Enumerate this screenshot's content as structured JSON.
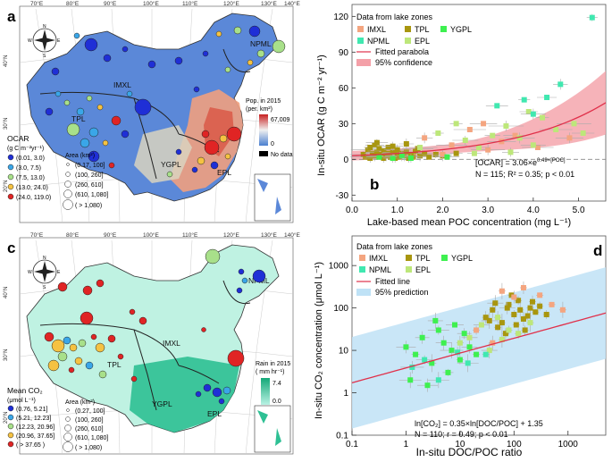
{
  "panel_a": {
    "label": "a",
    "lon_ticks": [
      "70°E",
      "80°E",
      "90°E",
      "100°E",
      "110°E",
      "120°E",
      "130°E",
      "140°E"
    ],
    "lat_ticks": [
      "40°N",
      "30°N",
      "20°N"
    ],
    "zones": [
      "NPML",
      "IMXL",
      "TPL",
      "YGPL",
      "EPL"
    ],
    "legend_title": "OCAR",
    "legend_unit": "(g C m⁻²yr⁻¹)",
    "classes": [
      {
        "label": "(0.01, 3.0)",
        "color": "#1f2fd6"
      },
      {
        "label": "(3.0, 7.5)",
        "color": "#3aa6e8"
      },
      {
        "label": "(7.5, 13.0)",
        "color": "#a8e08a"
      },
      {
        "label": "(13.0, 24.0)",
        "color": "#f5c242"
      },
      {
        "label": "(24.0, 119.0)",
        "color": "#e02424"
      }
    ],
    "area_title": "Area (km²)",
    "area_classes": [
      "(0.17, 100]",
      "(100, 260]",
      "(260, 610]",
      "(610, 1,080]",
      "( > 1,080)"
    ],
    "pop_title": "Pop. in 2015",
    "pop_unit": "(per. km²)",
    "pop_max": "67,009",
    "pop_min": "0",
    "no_data": "No data"
  },
  "panel_c": {
    "label": "c",
    "lon_ticks": [
      "70°E",
      "80°E",
      "90°E",
      "100°E",
      "110°E",
      "120°E",
      "130°E",
      "140°E"
    ],
    "lat_ticks": [
      "40°N",
      "30°N",
      "20°N"
    ],
    "zones": [
      "NPML",
      "IMXL",
      "TPL",
      "YGPL",
      "EPL"
    ],
    "legend_title": "Mean CO₂",
    "legend_unit": "(μmol L⁻¹)",
    "classes": [
      {
        "label": "(0.76, 5.21]",
        "color": "#1f2fd6"
      },
      {
        "label": "(5.21, 12.23]",
        "color": "#3aa6e8"
      },
      {
        "label": "(12.23, 20.96]",
        "color": "#a8e08a"
      },
      {
        "label": "(20.96, 37.65]",
        "color": "#f5c242"
      },
      {
        "label": "( > 37.65 )",
        "color": "#e02424"
      }
    ],
    "area_title": "Area (km²)",
    "area_classes": [
      "(0.27, 100]",
      "(100, 260]",
      "(260, 610]",
      "(610, 1,080]",
      "( > 1,080)"
    ],
    "rain_title": "Rain in 2015",
    "rain_unit": "( mm hr⁻¹)",
    "rain_max": "7.4",
    "rain_min": "0.0"
  },
  "zone_colors": {
    "IMXL": "#f4a580",
    "TPL": "#a8960f",
    "YGPL": "#3ef050",
    "NPML": "#40e8b0",
    "EPL": "#bde77a"
  },
  "chart_data": [
    {
      "id": "b",
      "type": "scatter",
      "label": "b",
      "legend_title": "Data from lake zones",
      "series_names": [
        "IMXL",
        "TPL",
        "YGPL",
        "NPML",
        "EPL"
      ],
      "fit_label": "Fitted parabola",
      "band_label": "95% confidence",
      "xlabel": "Lake-based mean POC concentration (mg L⁻¹)",
      "ylabel": "In-situ OCAR (g C m⁻² yr⁻¹)",
      "xlim": [
        0,
        5.6
      ],
      "ylim": [
        -35,
        130
      ],
      "xticks": [
        "0.0",
        "1.0",
        "2.0",
        "3.0",
        "4.0",
        "5.0"
      ],
      "yticks": [
        "-30",
        "0",
        "30",
        "60",
        "90",
        "120"
      ],
      "equation": "[OCAR] = 3.06×e^{0.49×[POC]}",
      "eq_lhs": "[OCAR] = 3.06×e",
      "eq_exp": "0.49×[POC]",
      "stats_line": "N = 115; R² = 0.35; p < 0.01",
      "fit": {
        "a": 3.06,
        "b": 0.49
      },
      "series": [
        {
          "name": "TPL",
          "points": [
            [
              0.25,
              4
            ],
            [
              0.3,
              2
            ],
            [
              0.35,
              8
            ],
            [
              0.4,
              1
            ],
            [
              0.45,
              5
            ],
            [
              0.5,
              12
            ],
            [
              0.5,
              3
            ],
            [
              0.55,
              6
            ],
            [
              0.6,
              2
            ],
            [
              0.6,
              9
            ],
            [
              0.65,
              4
            ],
            [
              0.7,
              7
            ],
            [
              0.7,
              1
            ],
            [
              0.75,
              3
            ],
            [
              0.8,
              10
            ],
            [
              0.8,
              5
            ],
            [
              0.85,
              2
            ],
            [
              0.9,
              6
            ],
            [
              0.95,
              1
            ],
            [
              1.0,
              4
            ],
            [
              1.0,
              8
            ],
            [
              1.05,
              2
            ],
            [
              1.1,
              5
            ],
            [
              1.15,
              3
            ],
            [
              1.2,
              6
            ],
            [
              1.25,
              1
            ],
            [
              1.3,
              4
            ],
            [
              1.35,
              2
            ],
            [
              1.4,
              7
            ],
            [
              1.5,
              3
            ],
            [
              1.6,
              5
            ],
            [
              1.7,
              2
            ],
            [
              1.85,
              4
            ],
            [
              2.0,
              3
            ],
            [
              2.3,
              5
            ],
            [
              0.55,
              14
            ],
            [
              0.9,
              11
            ],
            [
              1.2,
              13
            ],
            [
              0.4,
              10
            ],
            [
              1.45,
              9
            ]
          ]
        },
        {
          "name": "IMXL",
          "points": [
            [
              1.6,
              18
            ],
            [
              2.2,
              12
            ],
            [
              2.6,
              25
            ],
            [
              3.0,
              8
            ],
            [
              3.3,
              15
            ],
            [
              3.6,
              20
            ],
            [
              4.1,
              10
            ],
            [
              4.8,
              18
            ],
            [
              2.0,
              4
            ],
            [
              2.9,
              30
            ]
          ]
        },
        {
          "name": "EPL",
          "points": [
            [
              1.5,
              10
            ],
            [
              1.9,
              22
            ],
            [
              2.3,
              30
            ],
            [
              2.5,
              16
            ],
            [
              2.8,
              10
            ],
            [
              3.1,
              20
            ],
            [
              3.4,
              28
            ],
            [
              3.7,
              18
            ],
            [
              3.9,
              40
            ],
            [
              4.2,
              35
            ],
            [
              4.5,
              25
            ],
            [
              4.9,
              30
            ],
            [
              5.1,
              22
            ],
            [
              2.7,
              5
            ],
            [
              3.5,
              6
            ],
            [
              4.0,
              12
            ]
          ]
        },
        {
          "name": "YGPL",
          "points": [
            [
              0.6,
              2
            ],
            [
              0.9,
              1
            ],
            [
              1.1,
              3
            ],
            [
              1.3,
              1
            ],
            [
              2.1,
              2
            ]
          ]
        },
        {
          "name": "NPML",
          "points": [
            [
              4.3,
              52
            ],
            [
              4.6,
              63
            ],
            [
              5.3,
              119
            ],
            [
              3.2,
              45
            ],
            [
              3.8,
              50
            ],
            [
              4.0,
              38
            ]
          ]
        }
      ]
    },
    {
      "id": "d",
      "type": "scatter",
      "label": "d",
      "legend_title": "Data from lake zones",
      "series_names": [
        "IMXL",
        "TPL",
        "YGPL",
        "NPML",
        "EPL"
      ],
      "fit_label": "Fitted line",
      "band_label": "95% prediction",
      "xlabel": "In-situ DOC/POC ratio",
      "ylabel": "In-situ CO₂ concentration (μmol L⁻¹)",
      "xscale": "log",
      "yscale": "log",
      "xlim": [
        0.1,
        5000
      ],
      "ylim": [
        0.1,
        5000
      ],
      "xticks": [
        "0.1",
        "1",
        "10",
        "100",
        "1000"
      ],
      "yticks": [
        "0.1",
        "1",
        "10",
        "100",
        "1000"
      ],
      "eq_line1": "ln[CO₂] = 0.35×ln[DOC/POC] + 1.35",
      "stats_line": "N = 110; r = 0.49; p < 0.01",
      "fit": {
        "slope": 0.35,
        "intercept": 1.35
      },
      "series": [
        {
          "name": "TPL",
          "points": [
            [
              30,
              60
            ],
            [
              40,
              90
            ],
            [
              60,
              45
            ],
            [
              80,
              120
            ],
            [
              100,
              70
            ],
            [
              120,
              150
            ],
            [
              150,
              55
            ],
            [
              200,
              100
            ],
            [
              250,
              80
            ],
            [
              50,
              35
            ],
            [
              70,
              25
            ],
            [
              90,
              200
            ],
            [
              110,
              40
            ],
            [
              180,
              65
            ],
            [
              300,
              110
            ],
            [
              45,
              130
            ],
            [
              130,
              90
            ],
            [
              160,
              30
            ],
            [
              220,
              140
            ],
            [
              35,
              50
            ],
            [
              400,
              70
            ],
            [
              75,
              100
            ]
          ]
        },
        {
          "name": "IMXL",
          "points": [
            [
              20,
              30
            ],
            [
              60,
              250
            ],
            [
              100,
              180
            ],
            [
              300,
              200
            ],
            [
              500,
              120
            ],
            [
              800,
              90
            ],
            [
              150,
              300
            ],
            [
              40,
              15
            ]
          ]
        },
        {
          "name": "EPL",
          "points": [
            [
              15,
              20
            ],
            [
              25,
              40
            ],
            [
              50,
              60
            ],
            [
              80,
              30
            ],
            [
              120,
              25
            ],
            [
              10,
              15
            ],
            [
              35,
              10
            ],
            [
              200,
              45
            ],
            [
              60,
              18
            ]
          ]
        },
        {
          "name": "YGPL",
          "points": [
            [
              1,
              12
            ],
            [
              1.5,
              8
            ],
            [
              2,
              20
            ],
            [
              3,
              5
            ],
            [
              4,
              30
            ],
            [
              5,
              15
            ],
            [
              7,
              10
            ],
            [
              8,
              40
            ],
            [
              10,
              6
            ],
            [
              12,
              25
            ],
            [
              1.2,
              2
            ],
            [
              2.5,
              1.5
            ],
            [
              6,
              3
            ],
            [
              3.5,
              50
            ],
            [
              15,
              12
            ],
            [
              20,
              8
            ]
          ]
        },
        {
          "name": "NPML",
          "points": [
            [
              1.3,
              4
            ],
            [
              2.2,
              6
            ],
            [
              4,
              2
            ],
            [
              9,
              9
            ],
            [
              14,
              5
            ],
            [
              30,
              8
            ]
          ]
        }
      ]
    }
  ]
}
